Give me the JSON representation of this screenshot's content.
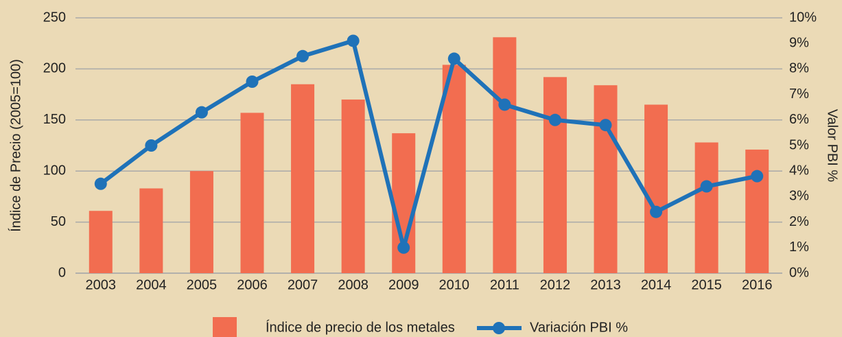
{
  "chart_data": {
    "type": "bar_line",
    "categories": [
      "2003",
      "2004",
      "2005",
      "2006",
      "2007",
      "2008",
      "2009",
      "2010",
      "2011",
      "2012",
      "2013",
      "2014",
      "2015",
      "2016"
    ],
    "y_label": "Índice de Precio (2005=100)",
    "y2_label": "Valor PBI %",
    "series": [
      {
        "name": "Índice de precio de los metales",
        "type": "bar",
        "color": "#f26d50",
        "values": [
          61,
          83,
          100,
          157,
          185,
          170,
          137,
          204,
          231,
          192,
          184,
          165,
          128,
          121
        ]
      },
      {
        "name": "Variación PBI %",
        "type": "line",
        "axis": "y2",
        "color": "#1f72b8",
        "values": [
          3.5,
          5.0,
          6.3,
          7.5,
          8.5,
          9.1,
          1.0,
          8.4,
          6.6,
          6.0,
          5.8,
          2.4,
          3.4,
          3.8
        ]
      }
    ],
    "ylim": [
      0,
      250
    ],
    "yticks": [
      0,
      50,
      100,
      150,
      200,
      250
    ],
    "y2lim": [
      0,
      10
    ],
    "y2ticks": [
      {
        "value": 0,
        "label": "0%"
      },
      {
        "value": 1,
        "label": "1%"
      },
      {
        "value": 2,
        "label": "2%"
      },
      {
        "value": 3,
        "label": "3%"
      },
      {
        "value": 4,
        "label": "4%"
      },
      {
        "value": 5,
        "label": "5%"
      },
      {
        "value": 6,
        "label": "6%"
      },
      {
        "value": 7,
        "label": "7%"
      },
      {
        "value": 8,
        "label": "8%"
      },
      {
        "value": 9,
        "label": "9%"
      },
      {
        "value": 10,
        "label": "10%"
      }
    ],
    "grid": true
  }
}
